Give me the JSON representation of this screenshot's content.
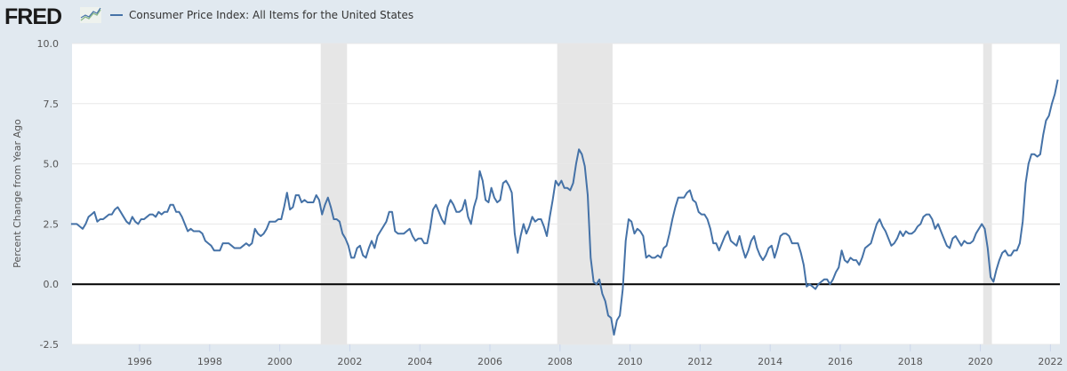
{
  "header": {
    "logo_text": "FRED",
    "legend_label": "Consumer Price Index: All Items for the United States",
    "series_color": "#4572a7"
  },
  "chart_data": {
    "type": "line",
    "title": "Consumer Price Index: All Items for the United States",
    "xlabel": "",
    "ylabel": "Percent Change from Year Ago",
    "x_start": "1994-01",
    "x_end": "2022-03",
    "x_frequency": "monthly",
    "xlim": [
      1994.07,
      2022.27
    ],
    "ylim": [
      -2.5,
      10.0
    ],
    "yticks": [
      -2.5,
      0.0,
      2.5,
      5.0,
      7.5,
      10.0
    ],
    "ytick_labels": [
      "-2.5",
      "0.0",
      "2.5",
      "5.0",
      "7.5",
      "10.0"
    ],
    "xticks": [
      1996,
      1998,
      2000,
      2002,
      2004,
      2006,
      2008,
      2010,
      2012,
      2014,
      2016,
      2018,
      2020,
      2022
    ],
    "xtick_labels": [
      "1996",
      "1998",
      "2000",
      "2002",
      "2004",
      "2006",
      "2008",
      "2010",
      "2012",
      "2014",
      "2016",
      "2018",
      "2020",
      "2022"
    ],
    "grid": true,
    "zero_line": true,
    "recessions": [
      [
        2001.17,
        2001.92
      ],
      [
        2007.92,
        2009.5
      ],
      [
        2020.08,
        2020.33
      ]
    ],
    "series": [
      {
        "name": "Consumer Price Index: All Items for the United States",
        "color": "#4572a7",
        "values": [
          2.5,
          2.5,
          2.5,
          2.4,
          2.3,
          2.5,
          2.8,
          2.9,
          3.0,
          2.6,
          2.7,
          2.7,
          2.8,
          2.9,
          2.9,
          3.1,
          3.2,
          3.0,
          2.8,
          2.6,
          2.5,
          2.8,
          2.6,
          2.5,
          2.7,
          2.7,
          2.8,
          2.9,
          2.9,
          2.8,
          3.0,
          2.9,
          3.0,
          3.0,
          3.3,
          3.3,
          3.0,
          3.0,
          2.8,
          2.5,
          2.2,
          2.3,
          2.2,
          2.2,
          2.2,
          2.1,
          1.8,
          1.7,
          1.6,
          1.4,
          1.4,
          1.4,
          1.7,
          1.7,
          1.7,
          1.6,
          1.5,
          1.5,
          1.5,
          1.6,
          1.7,
          1.6,
          1.7,
          2.3,
          2.1,
          2.0,
          2.1,
          2.3,
          2.6,
          2.6,
          2.6,
          2.7,
          2.7,
          3.2,
          3.8,
          3.1,
          3.2,
          3.7,
          3.7,
          3.4,
          3.5,
          3.4,
          3.4,
          3.4,
          3.7,
          3.5,
          2.9,
          3.3,
          3.6,
          3.2,
          2.7,
          2.7,
          2.6,
          2.1,
          1.9,
          1.6,
          1.1,
          1.1,
          1.5,
          1.6,
          1.2,
          1.1,
          1.5,
          1.8,
          1.5,
          2.0,
          2.2,
          2.4,
          2.6,
          3.0,
          3.0,
          2.2,
          2.1,
          2.1,
          2.1,
          2.2,
          2.3,
          2.0,
          1.8,
          1.9,
          1.9,
          1.7,
          1.7,
          2.3,
          3.1,
          3.3,
          3.0,
          2.7,
          2.5,
          3.2,
          3.5,
          3.3,
          3.0,
          3.0,
          3.1,
          3.5,
          2.8,
          2.5,
          3.2,
          3.6,
          4.7,
          4.3,
          3.5,
          3.4,
          4.0,
          3.6,
          3.4,
          3.5,
          4.2,
          4.3,
          4.1,
          3.8,
          2.1,
          1.3,
          2.0,
          2.5,
          2.1,
          2.4,
          2.8,
          2.6,
          2.7,
          2.7,
          2.4,
          2.0,
          2.8,
          3.5,
          4.3,
          4.1,
          4.3,
          4.0,
          4.0,
          3.9,
          4.2,
          5.0,
          5.6,
          5.4,
          4.9,
          3.7,
          1.1,
          0.1,
          0.0,
          0.2,
          -0.4,
          -0.7,
          -1.3,
          -1.4,
          -2.1,
          -1.5,
          -1.3,
          -0.2,
          1.8,
          2.7,
          2.6,
          2.1,
          2.3,
          2.2,
          2.0,
          1.1,
          1.2,
          1.1,
          1.1,
          1.2,
          1.1,
          1.5,
          1.6,
          2.1,
          2.7,
          3.2,
          3.6,
          3.6,
          3.6,
          3.8,
          3.9,
          3.5,
          3.4,
          3.0,
          2.9,
          2.9,
          2.7,
          2.3,
          1.7,
          1.7,
          1.4,
          1.7,
          2.0,
          2.2,
          1.8,
          1.7,
          1.6,
          2.0,
          1.5,
          1.1,
          1.4,
          1.8,
          2.0,
          1.5,
          1.2,
          1.0,
          1.2,
          1.5,
          1.6,
          1.1,
          1.5,
          2.0,
          2.1,
          2.1,
          2.0,
          1.7,
          1.7,
          1.7,
          1.3,
          0.8,
          -0.1,
          0.0,
          -0.1,
          -0.2,
          0.0,
          0.1,
          0.2,
          0.2,
          0.0,
          0.2,
          0.5,
          0.7,
          1.4,
          1.0,
          0.9,
          1.1,
          1.0,
          1.0,
          0.8,
          1.1,
          1.5,
          1.6,
          1.7,
          2.1,
          2.5,
          2.7,
          2.4,
          2.2,
          1.9,
          1.6,
          1.7,
          1.9,
          2.2,
          2.0,
          2.2,
          2.1,
          2.1,
          2.2,
          2.4,
          2.5,
          2.8,
          2.9,
          2.9,
          2.7,
          2.3,
          2.5,
          2.2,
          1.9,
          1.6,
          1.5,
          1.9,
          2.0,
          1.8,
          1.6,
          1.8,
          1.7,
          1.7,
          1.8,
          2.1,
          2.3,
          2.5,
          2.3,
          1.5,
          0.3,
          0.1,
          0.6,
          1.0,
          1.3,
          1.4,
          1.2,
          1.2,
          1.4,
          1.4,
          1.7,
          2.6,
          4.2,
          5.0,
          5.4,
          5.4,
          5.3,
          5.4,
          6.2,
          6.8,
          7.0,
          7.5,
          7.9,
          8.5
        ]
      }
    ]
  }
}
